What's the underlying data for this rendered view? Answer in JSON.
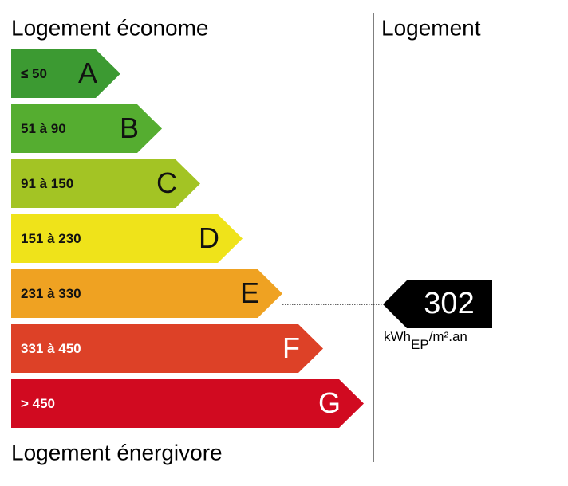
{
  "header": {
    "title_left": "Logement économe",
    "title_right": "Logement",
    "footer": "Logement énergivore"
  },
  "classes": [
    {
      "range": "≤ 50",
      "letter": "A",
      "color": "#3c9a32"
    },
    {
      "range": "51 à 90",
      "letter": "B",
      "color": "#55ad30"
    },
    {
      "range": "91 à 150",
      "letter": "C",
      "color": "#a3c424"
    },
    {
      "range": "151 à 230",
      "letter": "D",
      "color": "#efe31a"
    },
    {
      "range": "231 à 330",
      "letter": "E",
      "color": "#efa222"
    },
    {
      "range": "331 à 450",
      "letter": "F",
      "color": "#dd4127"
    },
    {
      "range": "> 450",
      "letter": "G",
      "color": "#d10a20"
    }
  ],
  "indicator": {
    "value": "302",
    "unit_main": "kWh",
    "unit_sub": "EP",
    "unit_rest": "/m².an"
  }
}
